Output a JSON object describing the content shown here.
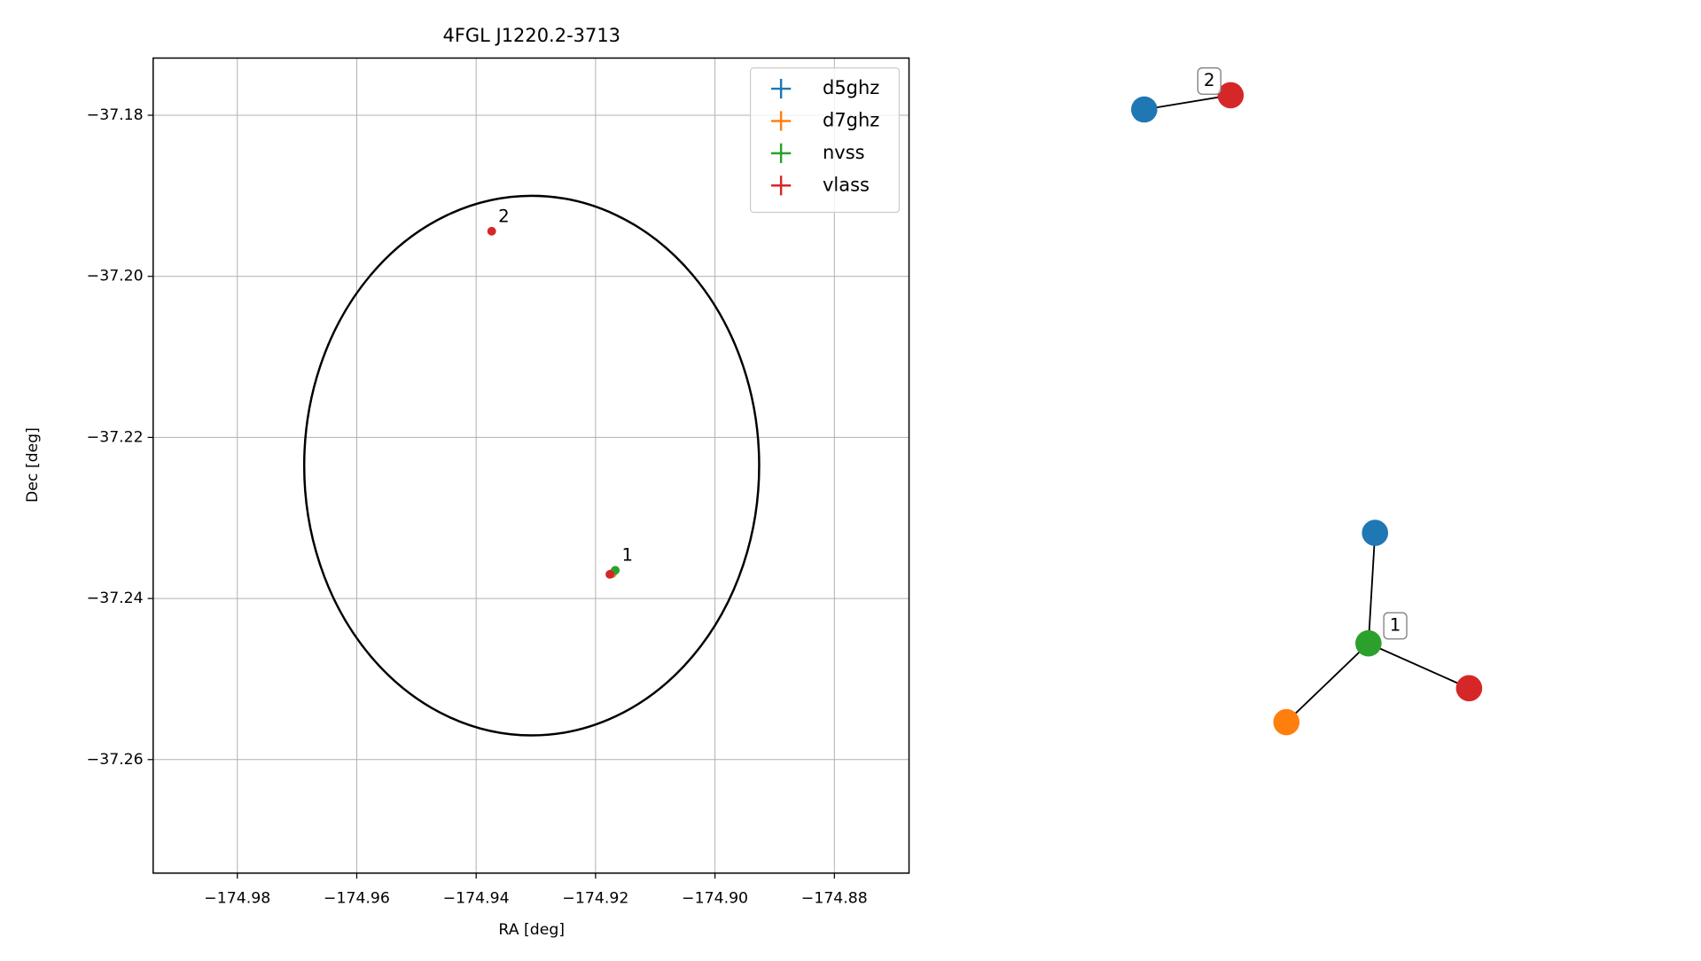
{
  "chart_data": {
    "type": "scatter",
    "title": "4FGL J1220.2-3713",
    "xlabel": "RA [deg]",
    "ylabel": "Dec [deg]",
    "xlim": [
      -174.9941,
      -174.8675
    ],
    "ylim": [
      -37.2741,
      -37.1729
    ],
    "xticks": [
      {
        "value": -174.98,
        "label": "−174.98"
      },
      {
        "value": -174.96,
        "label": "−174.96"
      },
      {
        "value": -174.94,
        "label": "−174.94"
      },
      {
        "value": -174.92,
        "label": "−174.92"
      },
      {
        "value": -174.9,
        "label": "−174.90"
      },
      {
        "value": -174.88,
        "label": "−174.88"
      }
    ],
    "yticks": [
      {
        "value": -37.18,
        "label": "−37.18"
      },
      {
        "value": -37.2,
        "label": "−37.20"
      },
      {
        "value": -37.22,
        "label": "−37.22"
      },
      {
        "value": -37.24,
        "label": "−37.24"
      },
      {
        "value": -37.26,
        "label": "−37.26"
      }
    ],
    "grid": true,
    "legend": "upper right",
    "series": [
      {
        "name": "d5ghz",
        "color": "#1f77b4",
        "x": [
          -174.9172
        ],
        "values": [
          -37.2369
        ]
      },
      {
        "name": "d7ghz",
        "color": "#ff7f0e",
        "x": [
          -174.9172
        ],
        "values": [
          -37.2369
        ]
      },
      {
        "name": "nvss",
        "color": "#2ca02c",
        "x": [
          -174.9167
        ],
        "values": [
          -37.2365
        ]
      },
      {
        "name": "vlass",
        "color": "#d62728",
        "x": [
          -174.9374,
          -174.9176
        ],
        "values": [
          -37.1944,
          -37.237
        ]
      }
    ],
    "ellipse": {
      "center": [
        -174.9307,
        -37.2235
      ],
      "width": 0.0762,
      "height": 0.067
    },
    "annotations": [
      {
        "text": "2",
        "x": -174.9374,
        "y": -37.1944
      },
      {
        "text": "1",
        "x": -174.9167,
        "y": -37.2365
      }
    ]
  }
}
